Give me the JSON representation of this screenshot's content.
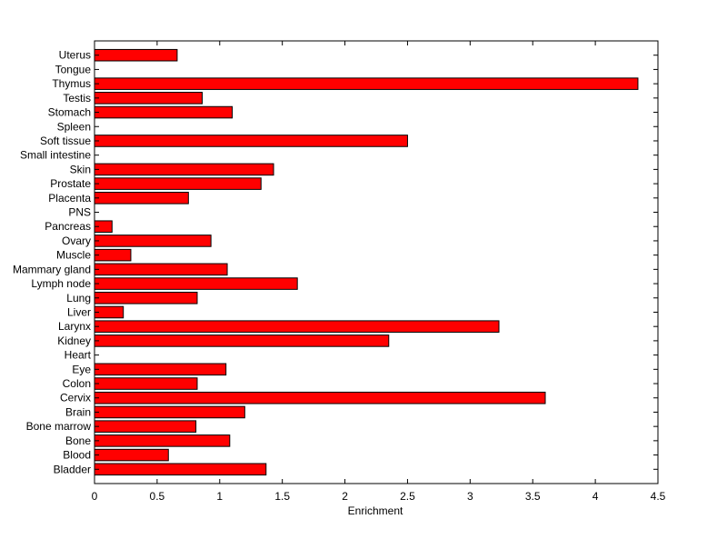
{
  "chart_data": {
    "type": "bar",
    "orientation": "horizontal",
    "xlabel": "Enrichment",
    "ylabel": "",
    "title": "",
    "xlim": [
      0,
      4.5
    ],
    "xticks": [
      "0",
      "0.5",
      "1",
      "1.5",
      "2",
      "2.5",
      "3",
      "3.5",
      "4",
      "4.5"
    ],
    "grid": false,
    "bar_color": "#ff0000",
    "bar_edge_color": "#000000",
    "categories": [
      "Bladder",
      "Blood",
      "Bone",
      "Bone marrow",
      "Brain",
      "Cervix",
      "Colon",
      "Eye",
      "Heart",
      "Kidney",
      "Larynx",
      "Liver",
      "Lung",
      "Lymph node",
      "Mammary gland",
      "Muscle",
      "Ovary",
      "Pancreas",
      "PNS",
      "Placenta",
      "Prostate",
      "Skin",
      "Small intestine",
      "Soft tissue",
      "Spleen",
      "Stomach",
      "Testis",
      "Thymus",
      "Tongue",
      "Uterus"
    ],
    "values": [
      1.37,
      0.59,
      1.08,
      0.81,
      1.2,
      3.6,
      0.82,
      1.05,
      0,
      2.35,
      3.23,
      0.23,
      0.82,
      1.62,
      1.06,
      0.29,
      0.93,
      0.14,
      0,
      0.75,
      1.33,
      1.43,
      0,
      2.5,
      0,
      1.1,
      0.86,
      4.34,
      0,
      0.66
    ]
  }
}
